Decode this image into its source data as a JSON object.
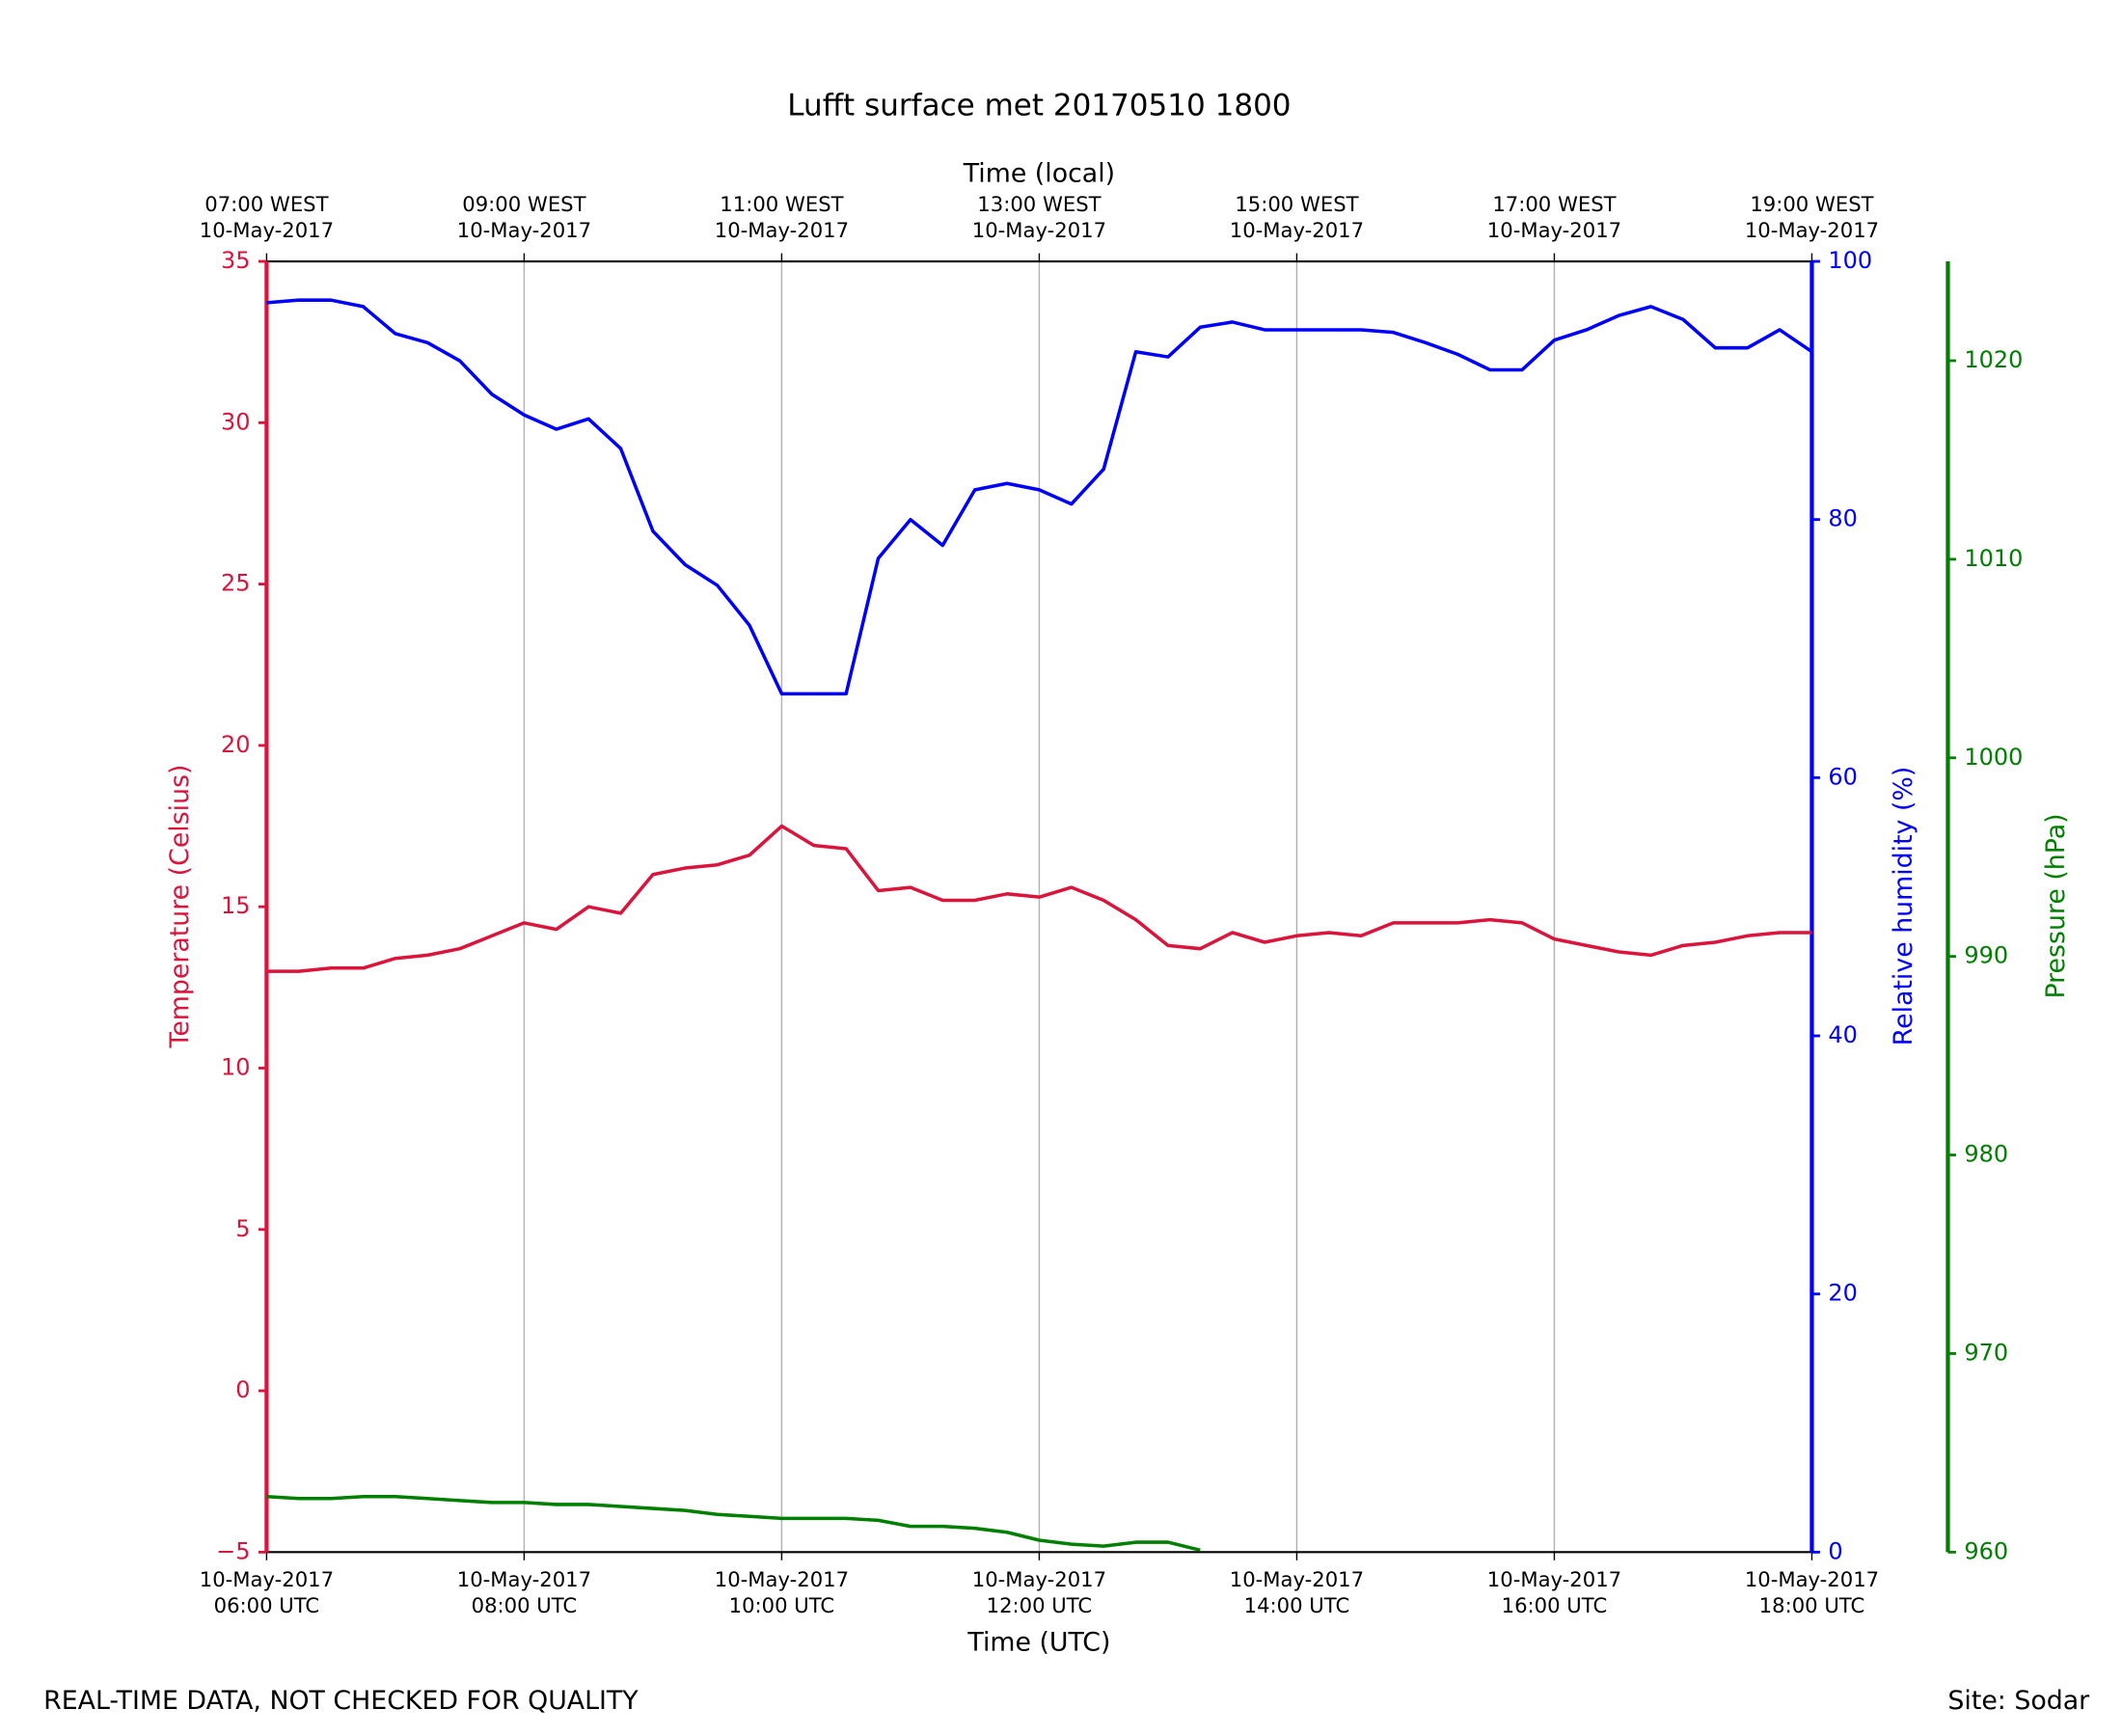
{
  "chart_data": {
    "type": "line",
    "title": "Lufft surface met 20170510 1800",
    "xlabel": "Time (UTC)",
    "x2label": "Time (local)",
    "ylabel": "Temperature (Celsius)",
    "y2label": "Relative humidity (%)",
    "y3label": "Pressure (hPa)",
    "note": "REAL-TIME DATA, NOT CHECKED FOR QUALITY",
    "site": "Site: Sodar",
    "grid": true,
    "x": [
      "2017-05-10 06:00",
      "2017-05-10 06:15",
      "2017-05-10 06:30",
      "2017-05-10 06:45",
      "2017-05-10 07:00",
      "2017-05-10 07:15",
      "2017-05-10 07:30",
      "2017-05-10 07:45",
      "2017-05-10 08:00",
      "2017-05-10 08:15",
      "2017-05-10 08:30",
      "2017-05-10 08:45",
      "2017-05-10 09:00",
      "2017-05-10 09:15",
      "2017-05-10 09:30",
      "2017-05-10 09:45",
      "2017-05-10 10:00",
      "2017-05-10 10:15",
      "2017-05-10 10:30",
      "2017-05-10 10:45",
      "2017-05-10 11:00",
      "2017-05-10 11:15",
      "2017-05-10 11:30",
      "2017-05-10 11:45",
      "2017-05-10 12:00",
      "2017-05-10 12:15",
      "2017-05-10 12:30",
      "2017-05-10 12:45",
      "2017-05-10 13:00",
      "2017-05-10 13:15",
      "2017-05-10 13:30",
      "2017-05-10 13:45",
      "2017-05-10 14:00",
      "2017-05-10 14:15",
      "2017-05-10 14:30",
      "2017-05-10 14:45",
      "2017-05-10 15:00",
      "2017-05-10 15:15",
      "2017-05-10 15:30",
      "2017-05-10 15:45",
      "2017-05-10 16:00",
      "2017-05-10 16:15",
      "2017-05-10 16:30",
      "2017-05-10 16:45",
      "2017-05-10 17:00",
      "2017-05-10 17:15",
      "2017-05-10 17:30",
      "2017-05-10 17:45",
      "2017-05-10 18:00"
    ],
    "xlim": [
      "2017-05-10 06:00",
      "2017-05-10 18:00"
    ],
    "xticks": [
      {
        "value": "2017-05-10 06:00",
        "label": [
          "10-May-2017",
          "06:00 UTC"
        ]
      },
      {
        "value": "2017-05-10 08:00",
        "label": [
          "10-May-2017",
          "08:00 UTC"
        ]
      },
      {
        "value": "2017-05-10 10:00",
        "label": [
          "10-May-2017",
          "10:00 UTC"
        ]
      },
      {
        "value": "2017-05-10 12:00",
        "label": [
          "10-May-2017",
          "12:00 UTC"
        ]
      },
      {
        "value": "2017-05-10 14:00",
        "label": [
          "10-May-2017",
          "14:00 UTC"
        ]
      },
      {
        "value": "2017-05-10 16:00",
        "label": [
          "10-May-2017",
          "16:00 UTC"
        ]
      },
      {
        "value": "2017-05-10 18:00",
        "label": [
          "10-May-2017",
          "18:00 UTC"
        ]
      }
    ],
    "x2ticks": [
      {
        "value": "2017-05-10 06:00",
        "label": [
          "07:00 WEST",
          "10-May-2017"
        ]
      },
      {
        "value": "2017-05-10 08:00",
        "label": [
          "09:00 WEST",
          "10-May-2017"
        ]
      },
      {
        "value": "2017-05-10 10:00",
        "label": [
          "11:00 WEST",
          "10-May-2017"
        ]
      },
      {
        "value": "2017-05-10 12:00",
        "label": [
          "13:00 WEST",
          "10-May-2017"
        ]
      },
      {
        "value": "2017-05-10 14:00",
        "label": [
          "15:00 WEST",
          "10-May-2017"
        ]
      },
      {
        "value": "2017-05-10 16:00",
        "label": [
          "17:00 WEST",
          "10-May-2017"
        ]
      },
      {
        "value": "2017-05-10 18:00",
        "label": [
          "19:00 WEST",
          "10-May-2017"
        ]
      }
    ],
    "ylim": [
      -5,
      35
    ],
    "yticks": [
      {
        "value": -5,
        "label": "−5"
      },
      0,
      5,
      10,
      15,
      20,
      25,
      30,
      35
    ],
    "y2lim": [
      0,
      100
    ],
    "y2ticks": [
      0,
      20,
      40,
      60,
      80,
      100
    ],
    "y3lim": [
      960,
      1025
    ],
    "y3ticks": [
      960,
      970,
      980,
      990,
      1000,
      1010,
      1020
    ],
    "series": [
      {
        "name": "Temperature",
        "color": "#dc143c",
        "axis": "y",
        "values": [
          13.0,
          13.0,
          13.1,
          13.1,
          13.4,
          13.5,
          13.7,
          14.1,
          14.5,
          14.3,
          15.0,
          14.8,
          16.0,
          16.2,
          16.3,
          16.6,
          17.5,
          16.9,
          16.8,
          15.5,
          15.6,
          15.2,
          15.2,
          15.4,
          15.3,
          15.6,
          15.2,
          14.6,
          13.8,
          13.7,
          14.2,
          13.9,
          14.1,
          14.2,
          14.1,
          14.5,
          14.5,
          14.5,
          14.6,
          14.5,
          14.0,
          13.8,
          13.6,
          13.5,
          13.8,
          13.9,
          14.1,
          14.2,
          14.2
        ]
      },
      {
        "name": "Relative humidity",
        "color": "#0000ff",
        "axis": "y2",
        "values": [
          96.8,
          97.0,
          97.0,
          96.5,
          94.4,
          93.7,
          92.3,
          89.7,
          88.1,
          87.0,
          87.8,
          85.5,
          79.1,
          76.5,
          74.9,
          71.8,
          66.5,
          66.5,
          66.5,
          77.0,
          80.0,
          78.0,
          82.3,
          82.8,
          82.3,
          81.2,
          83.9,
          93.0,
          92.6,
          94.9,
          95.3,
          94.7,
          94.7,
          94.7,
          94.7,
          94.5,
          93.7,
          92.8,
          91.6,
          91.6,
          93.9,
          94.7,
          95.8,
          96.5,
          95.5,
          93.3,
          93.3,
          94.7,
          93.0
        ]
      },
      {
        "name": "Pressure",
        "color": "#008000",
        "axis": "y3",
        "values": [
          962.8,
          962.7,
          962.7,
          962.8,
          962.8,
          962.7,
          962.6,
          962.5,
          962.5,
          962.4,
          962.4,
          962.3,
          962.2,
          962.1,
          961.9,
          961.8,
          961.7,
          961.7,
          961.7,
          961.6,
          961.3,
          961.3,
          961.2,
          961.0,
          960.6,
          960.4,
          960.3,
          960.5,
          960.5,
          960.1,
          null,
          null,
          null,
          null,
          null,
          null,
          null,
          null,
          null,
          null,
          null,
          null,
          null,
          null,
          null,
          null,
          null,
          null,
          null
        ]
      }
    ]
  }
}
